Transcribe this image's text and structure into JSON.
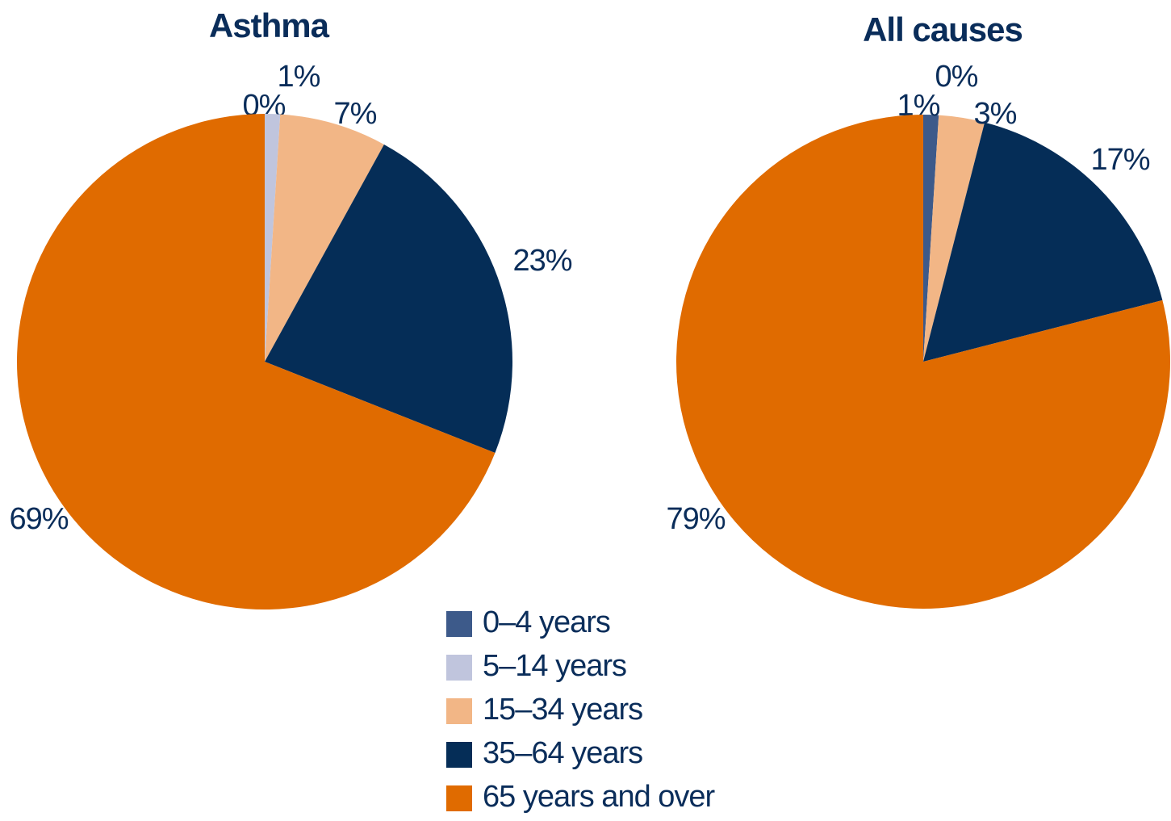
{
  "legend": {
    "labels": [
      "0–4 years",
      "5–14 years",
      "15–34 years",
      "35–64 years",
      "65 years and over"
    ],
    "colors": [
      "#3d5a8a",
      "#c0c5dd",
      "#f2b686",
      "#052d57",
      "#e06b00"
    ]
  },
  "chart_data": [
    {
      "type": "pie",
      "title": "Asthma",
      "values": [
        0,
        1,
        7,
        23,
        69
      ],
      "value_labels": [
        "0%",
        "1%",
        "7%",
        "23%",
        "69%"
      ]
    },
    {
      "type": "pie",
      "title": "All causes",
      "values": [
        1,
        0,
        3,
        17,
        79
      ],
      "value_labels": [
        "1%",
        "0%",
        "3%",
        "17%",
        "79%"
      ]
    }
  ]
}
